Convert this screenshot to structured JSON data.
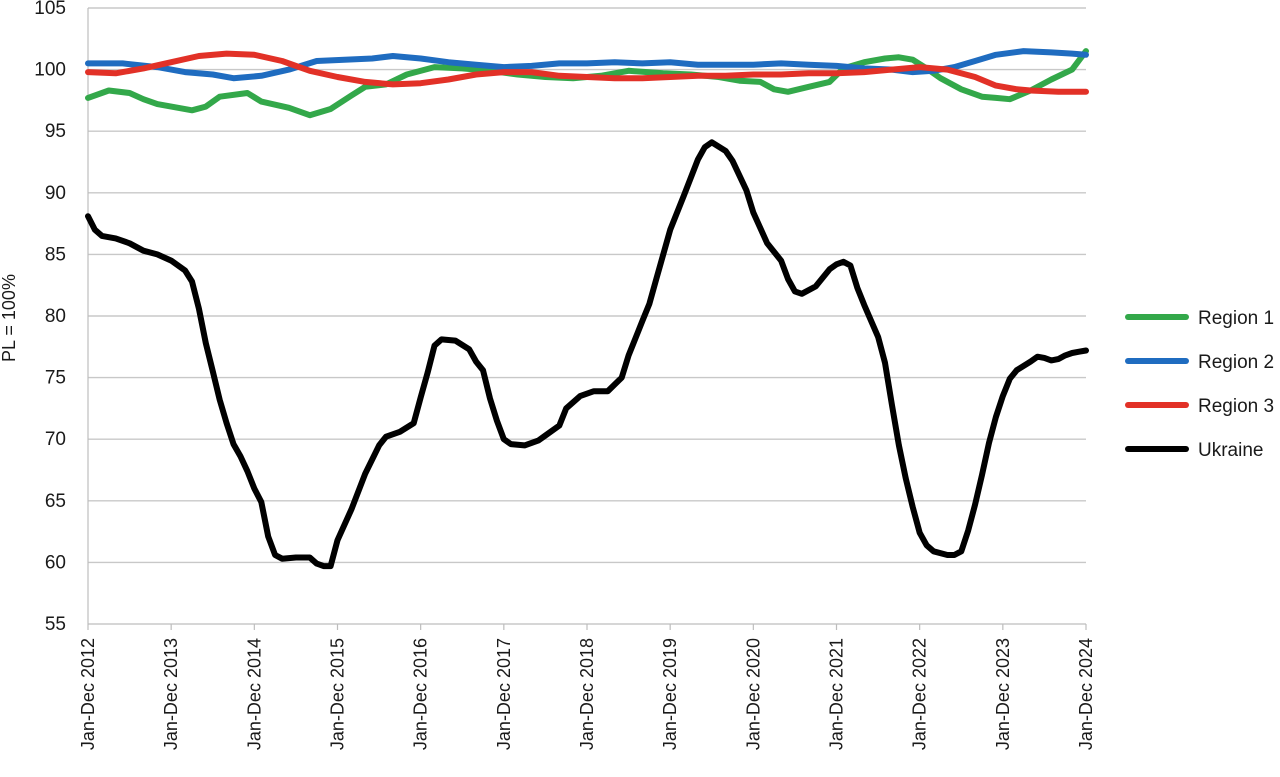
{
  "chart_data": {
    "type": "line",
    "title": "",
    "xlabel": "",
    "ylabel": "PL = 100%",
    "ylim": [
      55,
      105
    ],
    "yticks": [
      55,
      60,
      65,
      70,
      75,
      80,
      85,
      90,
      95,
      100,
      105
    ],
    "grid": true,
    "legend_position": "right",
    "x_tick_labels": [
      "Jan-Dec 2012",
      "Jan-Dec 2013",
      "Jan-Dec 2014",
      "Jan-Dec 2015",
      "Jan-Dec 2016",
      "Jan-Dec 2017",
      "Jan-Dec 2018",
      "Jan-Dec 2019",
      "Jan-Dec 2020",
      "Jan-Dec 2021",
      "Jan-Dec 2022",
      "Jan-Dec 2023",
      "Jan-Dec 2024"
    ],
    "x_tick_positions": [
      0,
      12,
      24,
      36,
      48,
      60,
      72,
      84,
      96,
      108,
      120,
      132,
      144
    ],
    "series": [
      {
        "name": "Region 1",
        "color": "#33a84a",
        "points": [
          [
            0,
            97.7
          ],
          [
            3,
            98.3
          ],
          [
            6,
            98.1
          ],
          [
            8,
            97.6
          ],
          [
            10,
            97.2
          ],
          [
            12,
            97.0
          ],
          [
            15,
            96.7
          ],
          [
            17,
            97.0
          ],
          [
            19,
            97.8
          ],
          [
            23,
            98.1
          ],
          [
            25,
            97.4
          ],
          [
            29,
            96.9
          ],
          [
            32,
            96.3
          ],
          [
            35,
            96.8
          ],
          [
            38,
            97.9
          ],
          [
            40,
            98.6
          ],
          [
            43,
            98.8
          ],
          [
            46,
            99.6
          ],
          [
            50,
            100.2
          ],
          [
            54,
            100.1
          ],
          [
            58,
            99.9
          ],
          [
            62,
            99.6
          ],
          [
            66,
            99.4
          ],
          [
            70,
            99.3
          ],
          [
            74,
            99.5
          ],
          [
            78,
            99.9
          ],
          [
            83,
            99.7
          ],
          [
            87,
            99.6
          ],
          [
            91,
            99.4
          ],
          [
            94,
            99.1
          ],
          [
            97,
            99.0
          ],
          [
            99,
            98.4
          ],
          [
            101,
            98.2
          ],
          [
            104,
            98.6
          ],
          [
            107,
            99.0
          ],
          [
            109,
            100.1
          ],
          [
            112,
            100.6
          ],
          [
            115,
            100.9
          ],
          [
            117,
            101.0
          ],
          [
            119,
            100.8
          ],
          [
            121,
            100.1
          ],
          [
            123,
            99.3
          ],
          [
            126,
            98.4
          ],
          [
            129,
            97.8
          ],
          [
            131,
            97.7
          ],
          [
            133,
            97.6
          ],
          [
            136,
            98.3
          ],
          [
            139,
            99.2
          ],
          [
            142,
            100.0
          ],
          [
            144,
            101.5
          ]
        ]
      },
      {
        "name": "Region 2",
        "color": "#1f6cc0",
        "points": [
          [
            0,
            100.5
          ],
          [
            5,
            100.5
          ],
          [
            10,
            100.2
          ],
          [
            14,
            99.8
          ],
          [
            18,
            99.6
          ],
          [
            21,
            99.3
          ],
          [
            25,
            99.5
          ],
          [
            29,
            100.0
          ],
          [
            33,
            100.7
          ],
          [
            37,
            100.8
          ],
          [
            41,
            100.9
          ],
          [
            44,
            101.1
          ],
          [
            48,
            100.9
          ],
          [
            52,
            100.6
          ],
          [
            56,
            100.4
          ],
          [
            60,
            100.2
          ],
          [
            64,
            100.3
          ],
          [
            68,
            100.5
          ],
          [
            72,
            100.5
          ],
          [
            76,
            100.6
          ],
          [
            80,
            100.5
          ],
          [
            84,
            100.6
          ],
          [
            88,
            100.4
          ],
          [
            92,
            100.4
          ],
          [
            96,
            100.4
          ],
          [
            100,
            100.5
          ],
          [
            104,
            100.4
          ],
          [
            108,
            100.3
          ],
          [
            112,
            100.1
          ],
          [
            116,
            100.0
          ],
          [
            119,
            99.8
          ],
          [
            122,
            99.9
          ],
          [
            125,
            100.2
          ],
          [
            128,
            100.7
          ],
          [
            131,
            101.2
          ],
          [
            135,
            101.5
          ],
          [
            139,
            101.4
          ],
          [
            142,
            101.3
          ],
          [
            144,
            101.2
          ]
        ]
      },
      {
        "name": "Region 3",
        "color": "#e23127",
        "points": [
          [
            0,
            99.8
          ],
          [
            4,
            99.7
          ],
          [
            8,
            100.1
          ],
          [
            12,
            100.6
          ],
          [
            16,
            101.1
          ],
          [
            20,
            101.3
          ],
          [
            24,
            101.2
          ],
          [
            28,
            100.7
          ],
          [
            32,
            99.9
          ],
          [
            36,
            99.4
          ],
          [
            40,
            99.0
          ],
          [
            44,
            98.8
          ],
          [
            48,
            98.9
          ],
          [
            52,
            99.2
          ],
          [
            56,
            99.6
          ],
          [
            60,
            99.8
          ],
          [
            64,
            99.8
          ],
          [
            68,
            99.5
          ],
          [
            72,
            99.4
          ],
          [
            76,
            99.3
          ],
          [
            80,
            99.3
          ],
          [
            84,
            99.4
          ],
          [
            88,
            99.5
          ],
          [
            92,
            99.5
          ],
          [
            96,
            99.6
          ],
          [
            100,
            99.6
          ],
          [
            104,
            99.7
          ],
          [
            108,
            99.7
          ],
          [
            112,
            99.8
          ],
          [
            116,
            100.0
          ],
          [
            120,
            100.2
          ],
          [
            124,
            100.0
          ],
          [
            128,
            99.4
          ],
          [
            131,
            98.7
          ],
          [
            134,
            98.4
          ],
          [
            136,
            98.3
          ],
          [
            140,
            98.2
          ],
          [
            144,
            98.2
          ]
        ]
      },
      {
        "name": "Ukraine",
        "color": "#000000",
        "points": [
          [
            0,
            88.1
          ],
          [
            1,
            87.0
          ],
          [
            2,
            86.5
          ],
          [
            4,
            86.3
          ],
          [
            6,
            85.9
          ],
          [
            8,
            85.3
          ],
          [
            10,
            85.0
          ],
          [
            12,
            84.5
          ],
          [
            14,
            83.7
          ],
          [
            15,
            82.8
          ],
          [
            16,
            80.6
          ],
          [
            17,
            77.8
          ],
          [
            18,
            75.5
          ],
          [
            19,
            73.2
          ],
          [
            20,
            71.3
          ],
          [
            21,
            69.6
          ],
          [
            22,
            68.6
          ],
          [
            23,
            67.4
          ],
          [
            24,
            66.0
          ],
          [
            25,
            64.9
          ],
          [
            26,
            62.1
          ],
          [
            27,
            60.6
          ],
          [
            28,
            60.3
          ],
          [
            30,
            60.4
          ],
          [
            32,
            60.4
          ],
          [
            33,
            59.9
          ],
          [
            34,
            59.7
          ],
          [
            35,
            59.7
          ],
          [
            36,
            61.8
          ],
          [
            38,
            64.3
          ],
          [
            40,
            67.2
          ],
          [
            42,
            69.5
          ],
          [
            43,
            70.2
          ],
          [
            45,
            70.6
          ],
          [
            47,
            71.3
          ],
          [
            48,
            73.4
          ],
          [
            49,
            75.4
          ],
          [
            50,
            77.6
          ],
          [
            51,
            78.1
          ],
          [
            53,
            78.0
          ],
          [
            55,
            77.3
          ],
          [
            56,
            76.3
          ],
          [
            57,
            75.6
          ],
          [
            58,
            73.3
          ],
          [
            59,
            71.5
          ],
          [
            60,
            70.0
          ],
          [
            61,
            69.6
          ],
          [
            63,
            69.5
          ],
          [
            65,
            69.9
          ],
          [
            66,
            70.3
          ],
          [
            68,
            71.1
          ],
          [
            69,
            72.5
          ],
          [
            71,
            73.5
          ],
          [
            73,
            73.9
          ],
          [
            75,
            73.9
          ],
          [
            77,
            75.0
          ],
          [
            78,
            76.8
          ],
          [
            80,
            79.6
          ],
          [
            81,
            81.0
          ],
          [
            82,
            83.0
          ],
          [
            84,
            87.0
          ],
          [
            86,
            89.8
          ],
          [
            88,
            92.7
          ],
          [
            89,
            93.7
          ],
          [
            90,
            94.1
          ],
          [
            92,
            93.4
          ],
          [
            93,
            92.6
          ],
          [
            95,
            90.2
          ],
          [
            96,
            88.4
          ],
          [
            98,
            85.9
          ],
          [
            100,
            84.5
          ],
          [
            101,
            83.0
          ],
          [
            102,
            82.0
          ],
          [
            103,
            81.8
          ],
          [
            105,
            82.4
          ],
          [
            107,
            83.8
          ],
          [
            108,
            84.2
          ],
          [
            109,
            84.4
          ],
          [
            110,
            84.1
          ],
          [
            111,
            82.3
          ],
          [
            112,
            80.9
          ],
          [
            114,
            78.3
          ],
          [
            115,
            76.2
          ],
          [
            116,
            72.8
          ],
          [
            117,
            69.5
          ],
          [
            118,
            66.8
          ],
          [
            119,
            64.5
          ],
          [
            120,
            62.4
          ],
          [
            121,
            61.4
          ],
          [
            122,
            60.9
          ],
          [
            124,
            60.6
          ],
          [
            125,
            60.6
          ],
          [
            126,
            60.9
          ],
          [
            127,
            62.6
          ],
          [
            128,
            64.7
          ],
          [
            129,
            67.1
          ],
          [
            130,
            69.7
          ],
          [
            131,
            71.8
          ],
          [
            132,
            73.5
          ],
          [
            133,
            74.9
          ],
          [
            134,
            75.6
          ],
          [
            136,
            76.3
          ],
          [
            137,
            76.7
          ],
          [
            138,
            76.6
          ],
          [
            139,
            76.4
          ],
          [
            140,
            76.5
          ],
          [
            141,
            76.8
          ],
          [
            142,
            77.0
          ],
          [
            143,
            77.1
          ],
          [
            144,
            77.2
          ]
        ]
      }
    ]
  }
}
